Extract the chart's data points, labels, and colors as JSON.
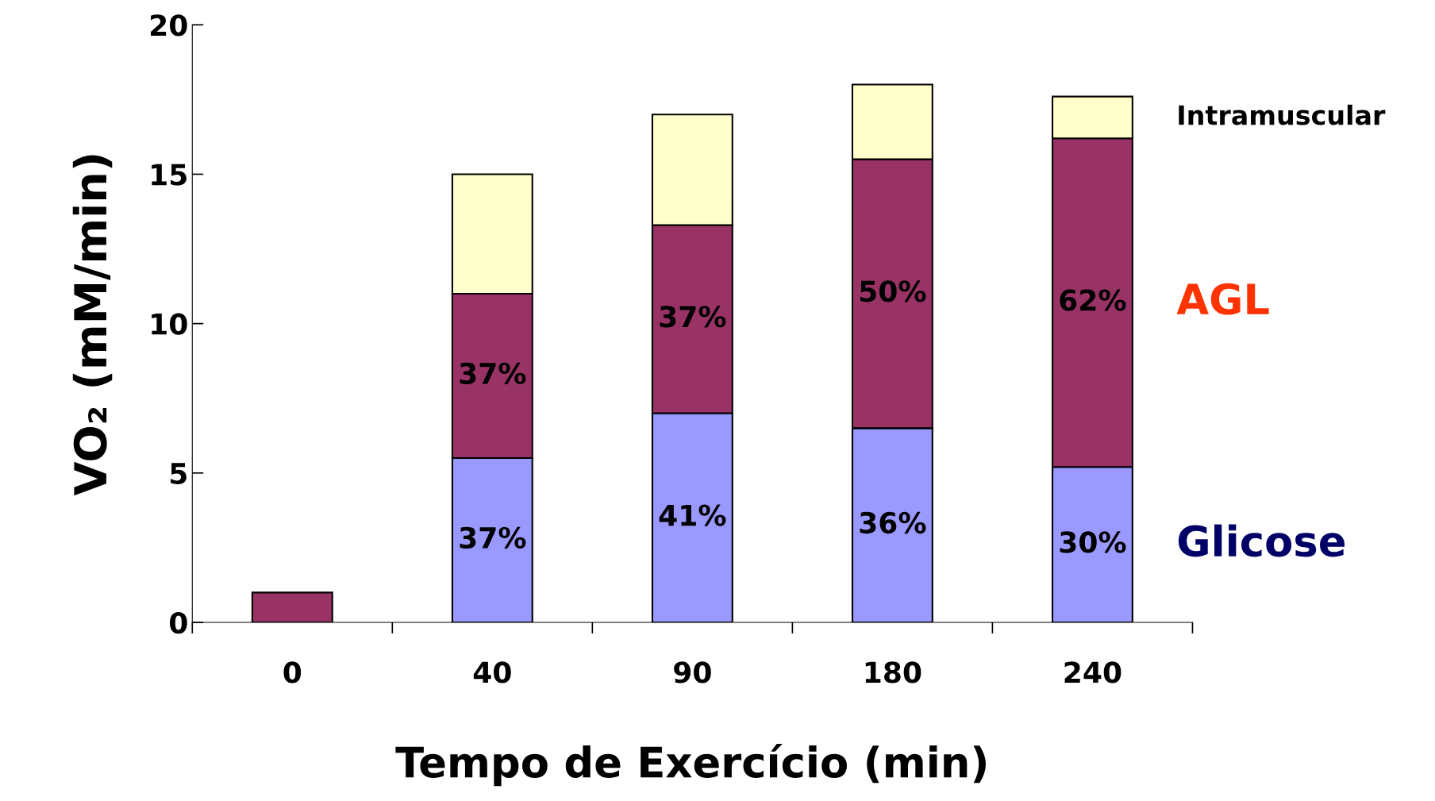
{
  "chart_data": {
    "type": "bar",
    "stacked": true,
    "xlabel": "Tempo de Exercício (min)",
    "ylabel": "VO₂ (mM/min)",
    "categories": [
      "0",
      "40",
      "90",
      "180",
      "240"
    ],
    "ylim": [
      0,
      20
    ],
    "yticks": [
      0,
      5,
      10,
      15,
      20
    ],
    "grid": false,
    "legend": false,
    "series": [
      {
        "name": "Glicose",
        "color": "#9999ff",
        "values": [
          0,
          5.5,
          7.0,
          6.5,
          5.2
        ]
      },
      {
        "name": "AGL",
        "color": "#993366",
        "values": [
          1.0,
          5.5,
          6.3,
          9.0,
          11.0
        ]
      },
      {
        "name": "Intramuscular",
        "color": "#ffffcc",
        "values": [
          0,
          4.0,
          3.7,
          2.5,
          1.4
        ]
      }
    ],
    "annotations": [
      "37%",
      "41%",
      "36%",
      "30%",
      "37%",
      "37%",
      "50%",
      "62%"
    ]
  }
}
